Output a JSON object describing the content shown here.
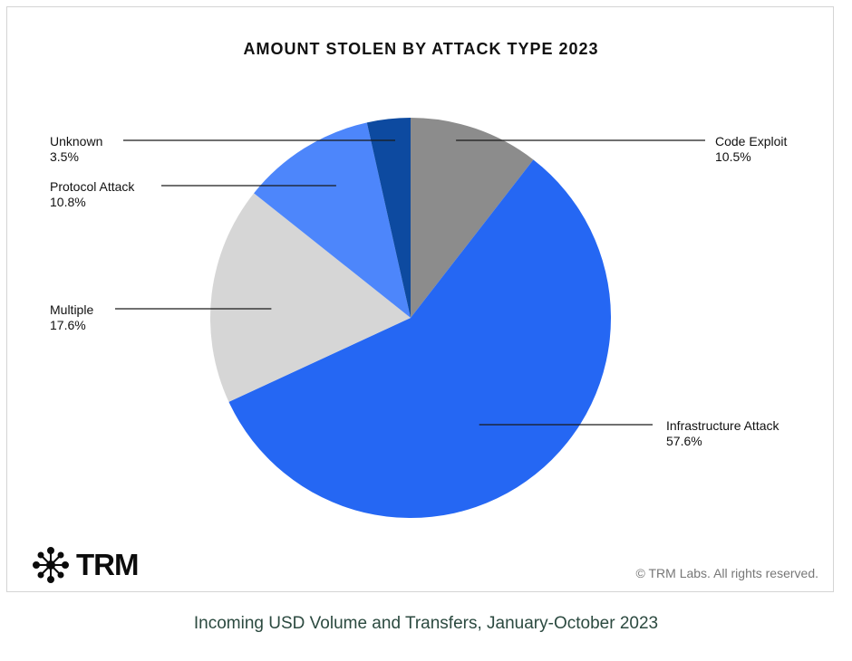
{
  "chart_data": {
    "type": "pie",
    "title": "AMOUNT STOLEN BY ATTACK TYPE 2023",
    "slices": [
      {
        "label": "Code Exploit",
        "value": 10.5,
        "display": "10.5%",
        "color": "#8c8c8c"
      },
      {
        "label": "Infrastructure Attack",
        "value": 57.6,
        "display": "57.6%",
        "color": "#2567f3"
      },
      {
        "label": "Multiple",
        "value": 17.6,
        "display": "17.6%",
        "color": "#d6d6d6"
      },
      {
        "label": "Protocol Attack",
        "value": 10.8,
        "display": "10.8%",
        "color": "#4d86fb"
      },
      {
        "label": "Unknown",
        "value": 3.5,
        "display": "3.5%",
        "color": "#0d4aa0"
      }
    ]
  },
  "branding": {
    "logo_text": "TRM",
    "logo_icon": "network-node-icon",
    "copyright": "© TRM Labs. All rights reserved."
  },
  "caption": "Incoming USD Volume and Transfers, January-October 2023"
}
